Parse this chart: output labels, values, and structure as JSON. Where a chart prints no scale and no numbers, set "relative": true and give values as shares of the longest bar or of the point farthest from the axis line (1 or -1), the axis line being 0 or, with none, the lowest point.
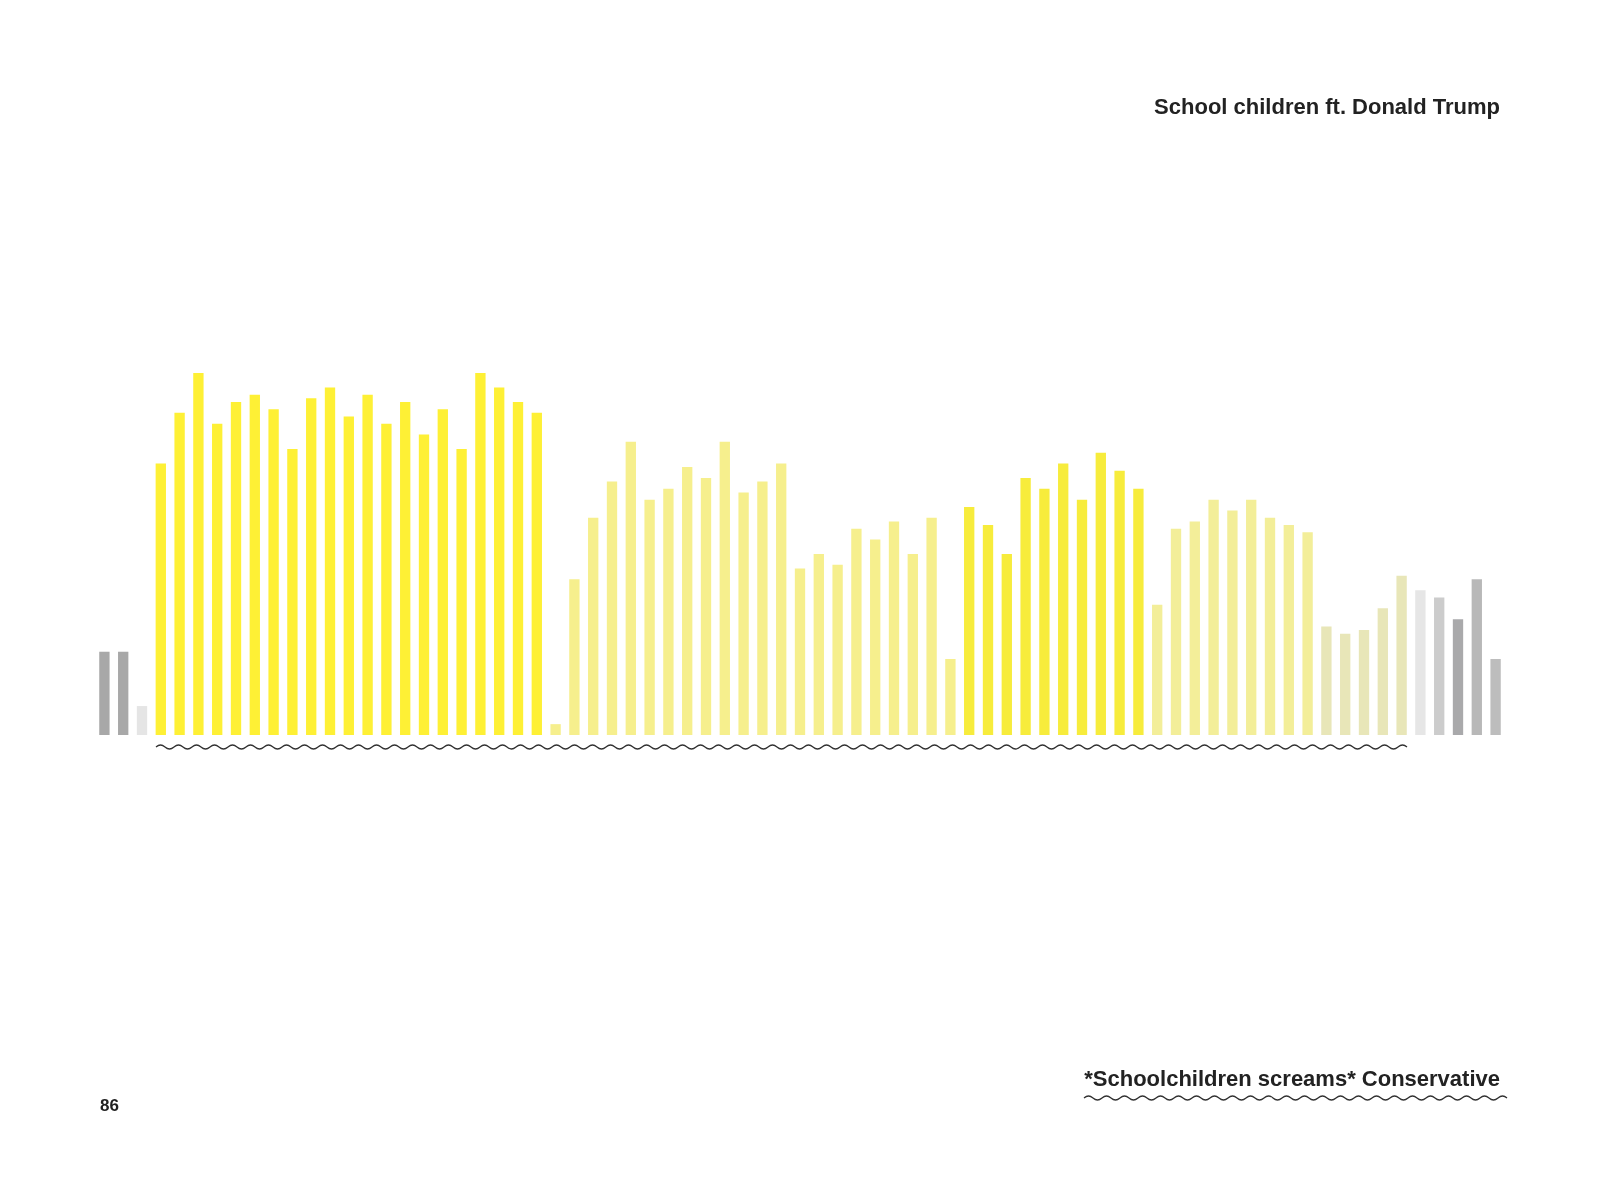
{
  "chart_data": {
    "type": "bar",
    "relative": true,
    "title": "School children ft. Donald Trump",
    "annotations": [
      "*Schoolchildren screams* Conservative",
      "86"
    ],
    "categories": [
      null,
      null,
      null,
      null,
      null,
      null,
      null,
      null,
      null,
      null,
      null,
      null,
      null,
      null,
      null,
      null,
      null,
      null,
      null,
      null,
      null,
      null,
      null,
      null,
      null,
      null,
      null,
      null,
      null,
      null,
      null,
      null,
      null,
      null,
      null,
      null,
      null,
      null,
      null,
      null,
      null,
      null,
      null,
      null,
      null,
      null,
      null,
      null,
      null,
      null,
      null,
      null,
      null,
      null,
      null,
      null,
      null,
      null,
      null,
      null,
      null,
      null,
      null,
      null,
      null,
      null,
      null,
      null,
      null,
      null,
      null,
      null,
      null,
      null,
      null
    ],
    "values": [
      0.23,
      0.23,
      0.08,
      0.75,
      0.89,
      1,
      0.86,
      0.92,
      0.94,
      0.9,
      0.79,
      0.93,
      0.96,
      0.88,
      0.94,
      0.86,
      0.92,
      0.83,
      0.9,
      0.79,
      1,
      0.96,
      0.92,
      0.89,
      0.03,
      0.43,
      0.6,
      0.7,
      0.81,
      0.65,
      0.68,
      0.74,
      0.71,
      0.81,
      0.67,
      0.7,
      0.75,
      0.46,
      0.5,
      0.47,
      0.57,
      0.54,
      0.59,
      0.5,
      0.6,
      0.21,
      0.63,
      0.58,
      0.5,
      0.71,
      0.68,
      0.75,
      0.65,
      0.78,
      0.73,
      0.68,
      0.36,
      0.57,
      0.59,
      0.65,
      0.62,
      0.65,
      0.6,
      0.58,
      0.56,
      0.3,
      0.28,
      0.29,
      0.35,
      0.44,
      0.4,
      0.38,
      0.32,
      0.43,
      0.21
    ],
    "colors": [
      "#a8a8a8",
      "#a8a8a8",
      "#e5e5e5",
      "#fef035",
      "#fef035",
      "#fef035",
      "#fef035",
      "#fef035",
      "#fef035",
      "#fef035",
      "#fef035",
      "#fef035",
      "#fef035",
      "#fef035",
      "#fef035",
      "#fef035",
      "#fef035",
      "#fef035",
      "#fef035",
      "#fef035",
      "#fef035",
      "#fef035",
      "#fef035",
      "#fef035",
      "#f6ef8d",
      "#f6ef8d",
      "#f6ef8d",
      "#f6ef8d",
      "#f6ef8d",
      "#f6ef8d",
      "#f6ef8d",
      "#f6ef8d",
      "#f6ef8d",
      "#f6ef8d",
      "#f6ef8d",
      "#f6ef8d",
      "#f6ef8d",
      "#f6ef8d",
      "#f6ef8d",
      "#f6ef8d",
      "#f6ef8d",
      "#f6ef8d",
      "#f6ef8d",
      "#f6ef8d",
      "#f6ef8d",
      "#f6ef8d",
      "#f7ec3c",
      "#f7ec3c",
      "#f7ec3c",
      "#f7ec3c",
      "#f7ec3c",
      "#f7ec3c",
      "#f7ec3c",
      "#f7ec3c",
      "#f7ec3c",
      "#f7ec3c",
      "#f3ee99",
      "#f3ee99",
      "#f3ee99",
      "#f3ee99",
      "#f3ee99",
      "#f3ee99",
      "#f3ee99",
      "#f3ee99",
      "#f3ee99",
      "#e8e6b8",
      "#e8e6b8",
      "#e8e6b8",
      "#e8e6b8",
      "#e8e6b8",
      "#e6e6e6",
      "#cccccc",
      "#a9a9ab",
      "#b8b8b8",
      "#bdbdbd"
    ]
  }
}
